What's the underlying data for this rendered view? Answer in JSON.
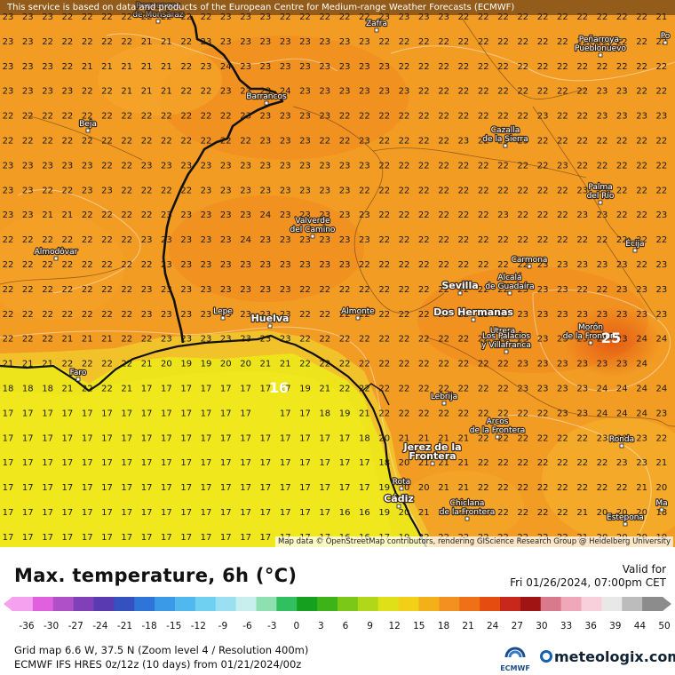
{
  "map": {
    "title": "Max. temperature, 6h (°C)",
    "valid_label": "Valid for",
    "valid_time": "Fri 01/26/2024, 07:00pm CET",
    "credit_top": "This service is based on data and products of the European Centre for Medium-range Weather Forecasts (ECMWF)",
    "credit_bottom": "Map data © OpenStreetMap contributors, rendering GIScience Research Group @ Heidelberg University",
    "grid_info": "Grid map 6.6 W, 37.5 N (Zoom level 4 / Resolution 400m)",
    "model_info": "ECMWF IFS HRES 0z/12z (10 days) from 01/21/2024/00z",
    "ecmwf_logo_text": "ECMWF",
    "brand": "meteologix.com",
    "highlight_values": [
      "25",
      "16"
    ]
  },
  "scale": {
    "ticks": [
      "-36",
      "-30",
      "-27",
      "-24",
      "-21",
      "-18",
      "-15",
      "-12",
      "-9",
      "-6",
      "-3",
      "0",
      "3",
      "6",
      "9",
      "12",
      "15",
      "18",
      "21",
      "24",
      "27",
      "30",
      "33",
      "36",
      "39",
      "44",
      "50"
    ],
    "colors": [
      "#f6a0f0",
      "#e060e0",
      "#b050c8",
      "#8040b8",
      "#5a3ab0",
      "#3550c0",
      "#2f74d8",
      "#3a9ae8",
      "#50b8ef",
      "#70d0f2",
      "#9adff2",
      "#c8efee",
      "#8fe0b0",
      "#30c060",
      "#16a020",
      "#3cb418",
      "#7cc818",
      "#b0d818",
      "#e0e018",
      "#f2d018",
      "#f4b018",
      "#f49020",
      "#f07018",
      "#e44c10",
      "#c8281c",
      "#a01414",
      "#d87a8c",
      "#f0a8b8",
      "#f8d0dc",
      "#e8e8e8",
      "#bcbcbc",
      "#8c8c8c"
    ]
  },
  "cities": [
    {
      "name": "Regengos de Monsaraz",
      "label_lines": [
        "Reguengos",
        "de Monsaraz"
      ]
    },
    {
      "name": "Zafra",
      "label_lines": [
        "Zafra"
      ]
    },
    {
      "name": "Peñarroya-Pueblonuevo",
      "label_lines": [
        "Peñarroya-",
        "Pueblonuevo"
      ]
    },
    {
      "name": "Po",
      "label_lines": [
        "Po"
      ]
    },
    {
      "name": "Barrancos",
      "label_lines": [
        "Barrancos"
      ]
    },
    {
      "name": "Beja",
      "label_lines": [
        "Beja"
      ]
    },
    {
      "name": "Cazalla de la Sierra",
      "label_lines": [
        "Cazalla",
        "de la Sierra"
      ]
    },
    {
      "name": "Palma del Río",
      "label_lines": [
        "Palma",
        "del Río"
      ]
    },
    {
      "name": "Valverde del Camino",
      "label_lines": [
        "Valverde",
        "del Camino"
      ]
    },
    {
      "name": "Écija",
      "label_lines": [
        "Écija"
      ]
    },
    {
      "name": "Almodôvar",
      "label_lines": [
        "Almodôvar"
      ]
    },
    {
      "name": "Carmona",
      "label_lines": [
        "Carmona"
      ]
    },
    {
      "name": "Sevilla",
      "label_lines": [
        "Sevilla"
      ]
    },
    {
      "name": "Alcalá de Guadaíra",
      "label_lines": [
        "Alcalá",
        "de Guadaíra"
      ]
    },
    {
      "name": "Lepe",
      "label_lines": [
        "Lepe"
      ]
    },
    {
      "name": "Huelva",
      "label_lines": [
        "Huelva"
      ]
    },
    {
      "name": "Almonte",
      "label_lines": [
        "Almonte"
      ]
    },
    {
      "name": "Dos Hermanas",
      "label_lines": [
        "Dos Hermanas"
      ]
    },
    {
      "name": "Utrera",
      "label_lines": [
        "Utrera"
      ]
    },
    {
      "name": "Morón de la Frontera",
      "label_lines": [
        "Morón",
        "de la Frontera"
      ]
    },
    {
      "name": "Los Palacios y Villafranca",
      "label_lines": [
        "Los Palacios",
        "y Villafranca"
      ]
    },
    {
      "name": "Faro",
      "label_lines": [
        "Faro"
      ]
    },
    {
      "name": "Lebrija",
      "label_lines": [
        "Lebrija"
      ]
    },
    {
      "name": "Arcos de la Frontera",
      "label_lines": [
        "Arcos",
        "de la Frontera"
      ]
    },
    {
      "name": "Ronda",
      "label_lines": [
        "Ronda"
      ]
    },
    {
      "name": "Jerez de la Frontera",
      "label_lines": [
        "Jerez de la",
        "Frontera"
      ]
    },
    {
      "name": "Rota",
      "label_lines": [
        "Rota"
      ]
    },
    {
      "name": "Cádiz",
      "label_lines": [
        "Cádiz"
      ]
    },
    {
      "name": "Chiclana de la Frontera",
      "label_lines": [
        "Chiclana",
        "de la Frontera"
      ]
    },
    {
      "name": "Estepona",
      "label_lines": [
        "Estepona"
      ]
    },
    {
      "name": "Ma",
      "label_lines": [
        "Ma"
      ]
    }
  ],
  "grid_values": [
    "23 23 23 22 22 22 22 22 22 22 22 23 23 23 22 22 22 22 22 23 23 23 23 22 22 22 22 22 22 22 22 22 22 21 21",
    "23 23 22 22 22 22 22 21 21 22 23 23 23 23 23 23 23 23 23 22 22 22 22 22 22 22 22 22 22 22 22 22 22 22 22",
    "23 23 23 22 21 21 21 21 21 22 23 24 23 23 23 23 23 23 23 23 22 22 22 22 22 22 22 22 22 22 22 22 22 22 23",
    "23 23 23 23 22 22 21 21 21 22 22 23 23 23 24 23 23 23 23 23 23 22 22 22 22 22 22 22 22 22 23 23 22 22 23",
    "22 22 22 22 22 22 22 22 22 22 22 22 23 23 23 23 23 22 22 22 22 22 22 22 22 22 22 23 22 22 23 23 23 23 23",
    "22 22 22 22 22 22 22 22 22 22 22 22 22 23 23 23 22 22 23 22 22 22 22 23 22 23 23 22 22 22 22 22 22 22 23",
    "23 23 23 23 23 22 22 23 23 23 23 23 23 23 23 23 23 23 23 22 22 22 22 22 22 22 22 22 23 22 22 22 22 22 23",
    "23 23 22 22 23 23 22 22 22 22 23 23 23 23 23 23 23 23 22 22 22 22 22 22 22 22 22 22 22 23 23 22 22 22 23",
    "23 23 21 21 22 22 22 22 23 23 23 23 23 24 23 23 23 23 23 22 22 22 22 22 22 23 22 22 22 23 23 22 22 23 23",
    "22 22 22 22 22 22 22 23 23 23 23 23 24 23 23 23 23 23 23 22 22 22 22 22 22 22 22 22 22 22 22 22 22 22 23",
    "22 22 22 22 22 22 22 22 23 23 23 23 23 23 23 23 23 23 22 22 22 22 22 22 22 22 22 23 23 23 23 23 22 23 23",
    "22 22 22 22 22 22 22 23 23 23 23 23 23 23 23 22 22 22 22 22 22 22 22 22 22 22 23 23 23 22 22 23 23 23 23",
    "22 22 22 22 22 22 22 23 23 23 23 23 23 23 23 22 22 22 22 22 22 22 22 22 22 23 23 23 23 23 23 23 23 23 23",
    "22 22 22 21 21 21 22 22 23 23 23 23 23 23 23 22 22 22 22 22 22 22 22 22 22 22 23 23 23 23 23 23 24 24 24",
    "21 21 21 22 22 22 22 21 20 19 19 20 20 21 21 22 22 22 22 22 22 22 22 22 22 22 23 23 23 23 23 23 24 25 24",
    "18 18 18 21 22 22 21 17 17 17 17 17 17 17 17 19 21 22 22 22 22 22 22 22 22 22 23 23 23 23 24 24 24 24 23",
    "17 17 17 17 17 17 17 17 17 17 17 17 17 16 17 17 18 19 21 22 22 22 22 22 22 22 22 22 23 23 24 24 24 23 22",
    "17 17 17 17 17 17 17 17 17 17 17 17 17 17 17 17 17 17 18 20 21 21 21 21 22 22 22 22 22 22 23 23 23 22 21",
    "17 17 17 17 17 17 17 17 17 17 17 17 17 17 17 17 17 17 17 18 20 21 21 21 22 22 22 22 22 22 22 23 23 21 20",
    "17 17 17 17 17 17 17 17 17 17 17 17 17 17 17 17 17 17 17 19 20 20 21 21 22 22 22 22 22 22 22 22 21 20 19",
    "17 17 17 17 17 17 17 17 17 17 17 17 17 17 17 17 17 16 16 19 20 21 21 22 22 22 22 22 22 21 20 20 20 18 18",
    "17 17 17 17 17 17 17 17 17 17 17 17 17 17 17 17 17 16 16 17 19 22 22 22 22 22 22 22 22 21 20 20 20 19 19",
    "17 17 17 17 17 17 17 17 17 17 17 17 17 17 17 17 17 17 17 17 17 20 22 22 22 22 22 22 21 20 20 20 20 19 18",
    "17 18 17 17 17 17 17 17 17 17 17 17 17 17 18 18 17 17 17 17 17 18 20 22 21 21 21 21 20 20 20 20 20 19 19"
  ]
}
